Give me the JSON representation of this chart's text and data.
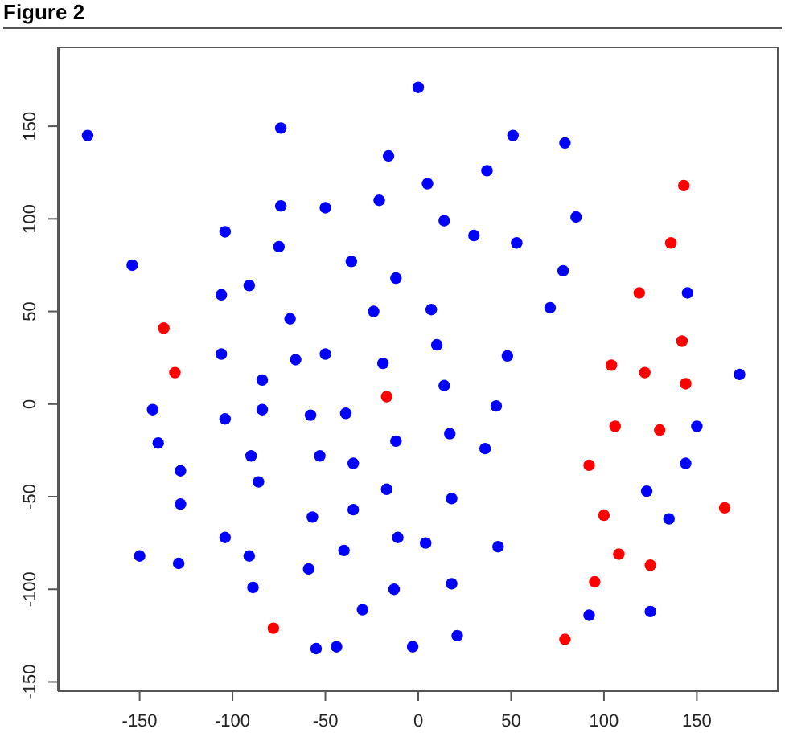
{
  "chart_data": {
    "type": "scatter",
    "title": "Figure 2",
    "marker": "circle",
    "grid": false,
    "legend": false,
    "xlim": [
      -194,
      194
    ],
    "ylim": [
      -155,
      193
    ],
    "xticks": [
      -150,
      -100,
      -50,
      0,
      50,
      100,
      150
    ],
    "yticks": [
      -150,
      -100,
      -50,
      0,
      50,
      100,
      150
    ],
    "series": [
      {
        "color": "#0000ff",
        "x": [
          -178,
          -74,
          0,
          -16,
          51,
          79,
          5,
          37,
          14,
          30,
          53,
          85,
          78,
          -12,
          7,
          71,
          10,
          48,
          145,
          -74,
          -50,
          -21,
          -104,
          -75,
          -36,
          -154,
          -106,
          -91,
          -69,
          -24,
          -106,
          -66,
          -50,
          -19,
          -84,
          -143,
          -84,
          -104,
          -58,
          -39,
          -140,
          -90,
          -53,
          -35,
          -12,
          -128,
          -86,
          -17,
          -128,
          -57,
          -35,
          -104,
          -11,
          -150,
          -129,
          -91,
          -40,
          -59,
          -89,
          -13,
          -30,
          -55,
          -44,
          -3,
          173,
          14,
          42,
          17,
          36,
          150,
          144,
          123,
          18,
          135,
          4,
          43,
          18,
          92,
          125,
          21
        ],
        "values": [
          145,
          149,
          171,
          134,
          145,
          141,
          119,
          126,
          99,
          91,
          87,
          101,
          72,
          68,
          51,
          52,
          32,
          26,
          60,
          107,
          106,
          110,
          93,
          85,
          77,
          75,
          59,
          64,
          46,
          50,
          27,
          24,
          27,
          22,
          13,
          -3,
          -3,
          -8,
          -6,
          -5,
          -21,
          -28,
          -28,
          -32,
          -20,
          -36,
          -42,
          -46,
          -54,
          -61,
          -57,
          -72,
          -72,
          -82,
          -86,
          -82,
          -79,
          -89,
          -99,
          -100,
          -111,
          -132,
          -131,
          -131,
          16,
          10,
          -1,
          -16,
          -24,
          -12,
          -32,
          -47,
          -51,
          -62,
          -75,
          -77,
          -97,
          -114,
          -112,
          -125
        ]
      },
      {
        "color": "#ff0000",
        "x": [
          -137,
          -131,
          -17,
          -78,
          143,
          136,
          119,
          142,
          104,
          122,
          144,
          106,
          130,
          92,
          165,
          100,
          108,
          125,
          95,
          79
        ],
        "values": [
          41,
          17,
          4,
          -121,
          118,
          87,
          60,
          34,
          21,
          17,
          11,
          -12,
          -14,
          -33,
          -56,
          -60,
          -81,
          -87,
          -96,
          -127
        ]
      }
    ]
  }
}
